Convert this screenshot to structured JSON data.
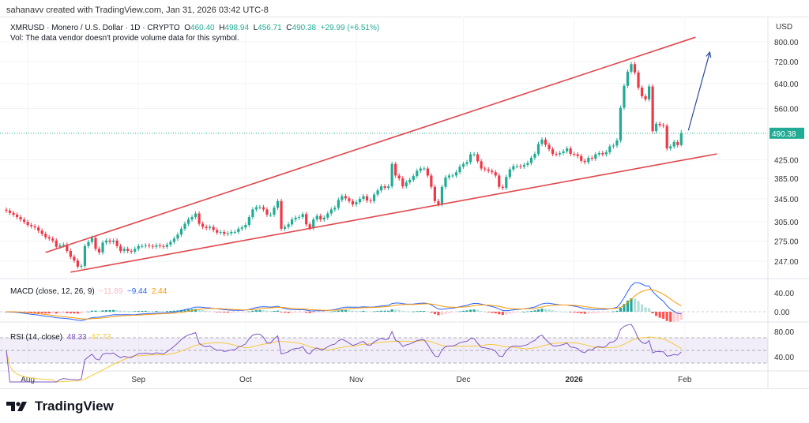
{
  "header": {
    "credit": "sahanavv created with TradingView.com, Jan 31, 2026 03:42 UTC-8"
  },
  "legend": {
    "symbol": "XMRUSD · Monero / U.S. Dollar · 1D · CRYPTO",
    "o_label": "O",
    "o": "460.40",
    "h_label": "H",
    "h": "498.94",
    "l_label": "L",
    "l": "456.71",
    "c_label": "C",
    "c": "490.38",
    "change": "+29.99 (+6.51%)",
    "vol_note": "Vol: The data vendor doesn't provide volume data for this symbol."
  },
  "macd_legend": {
    "title": "MACD (close, 12, 26, 9)",
    "histogram": "−11.89",
    "macd": "−9.44",
    "signal": "2.44"
  },
  "rsi_legend": {
    "title": "RSI (14, close)",
    "rsi": "48.33",
    "ma": "47.73"
  },
  "brand": {
    "name": "TradingView"
  },
  "colors": {
    "up": "#22ab94",
    "down": "#f23645",
    "trendline": "#e0474c",
    "arrow": "#2e4a9e",
    "macd": "#2962ff",
    "signal": "#ff9800",
    "rsi": "#7e57c2",
    "rsi_ma": "#f5c93a",
    "last_price": "#22ab94"
  },
  "chart_data": [
    {
      "type": "candlestick",
      "title": "XMRUSD · Monero / U.S. Dollar · 1D · CRYPTO",
      "y_scale": "log",
      "y_unit": "USD",
      "y_ticks": [
        247,
        275,
        305,
        345,
        385,
        425,
        560,
        640,
        720,
        800
      ],
      "y_tick_labels": [
        "247.00",
        "275.00",
        "305.00",
        "345.00",
        "385.00",
        "425.00",
        "560.00",
        "640.00",
        "720.00",
        "800.00"
      ],
      "last_price_label": "490.38",
      "x_start_date": "2025-07-26",
      "x_tick_labels": [
        "Aug",
        "Sep",
        "Oct",
        "Nov",
        "Dec",
        "2026",
        "Feb"
      ],
      "x_tick_dates": [
        "2025-08-01",
        "2025-09-01",
        "2025-10-01",
        "2025-11-01",
        "2025-12-01",
        "2026-01-01",
        "2026-02-01"
      ],
      "last_candle": {
        "open": 460.4,
        "high": 498.94,
        "low": 456.71,
        "close": 490.38
      },
      "closes": [
        324,
        320,
        317,
        313,
        309,
        305,
        300,
        298,
        296,
        291,
        286,
        281,
        279,
        276,
        267,
        269,
        270,
        261,
        253,
        248,
        240,
        241,
        268,
        274,
        280,
        264,
        259,
        273,
        276,
        274,
        276,
        268,
        261,
        264,
        261,
        260,
        264,
        268,
        268,
        269,
        268,
        267,
        269,
        268,
        267,
        270,
        274,
        279,
        285,
        294,
        302,
        309,
        313,
        319,
        302,
        297,
        295,
        297,
        292,
        288,
        289,
        286,
        287,
        289,
        289,
        294,
        296,
        300,
        313,
        326,
        330,
        330,
        326,
        317,
        317,
        329,
        341,
        294,
        297,
        301,
        309,
        312,
        313,
        318,
        301,
        295,
        309,
        315,
        309,
        312,
        319,
        326,
        329,
        343,
        350,
        346,
        341,
        335,
        339,
        345,
        350,
        342,
        341,
        353,
        361,
        369,
        366,
        369,
        416,
        391,
        385,
        369,
        377,
        382,
        390,
        401,
        406,
        406,
        391,
        368,
        341,
        335,
        368,
        387,
        391,
        391,
        398,
        410,
        416,
        420,
        438,
        438,
        422,
        406,
        404,
        401,
        398,
        391,
        368,
        366,
        388,
        404,
        411,
        411,
        410,
        414,
        418,
        430,
        439,
        463,
        474,
        461,
        450,
        439,
        438,
        441,
        445,
        452,
        439,
        438,
        434,
        423,
        420,
        430,
        428,
        438,
        441,
        438,
        443,
        457,
        459,
        472,
        562,
        632,
        682,
        710,
        679,
        626,
        598,
        588,
        630,
        496,
        516,
        512,
        510,
        452,
        457,
        468,
        460.4,
        490.38
      ],
      "trendlines": [
        {
          "name": "upper",
          "from": {
            "date": "2025-08-06",
            "price": 259
          },
          "to": {
            "date": "2026-02-04",
            "price": 820
          }
        },
        {
          "name": "lower",
          "from": {
            "date": "2025-08-13",
            "price": 233
          },
          "to": {
            "date": "2026-02-10",
            "price": 439
          }
        }
      ],
      "projection_arrow": {
        "from": {
          "date": "2026-02-02",
          "price": 498
        },
        "to": {
          "date": "2026-02-08",
          "price": 757
        }
      }
    },
    {
      "type": "line",
      "title": "MACD (close, 12, 26, 9)",
      "y_ticks": [
        0,
        40
      ],
      "y_tick_labels": [
        "0.00",
        "40.00"
      ],
      "params": {
        "fast": 12,
        "slow": 26,
        "signal": 9
      }
    },
    {
      "type": "line",
      "title": "RSI (14, close)",
      "y_ticks": [
        40,
        80
      ],
      "y_tick_labels": [
        "40.00",
        "80.00"
      ],
      "bands": [
        30,
        70
      ],
      "params": {
        "length": 14,
        "ma_length": 14
      }
    }
  ]
}
